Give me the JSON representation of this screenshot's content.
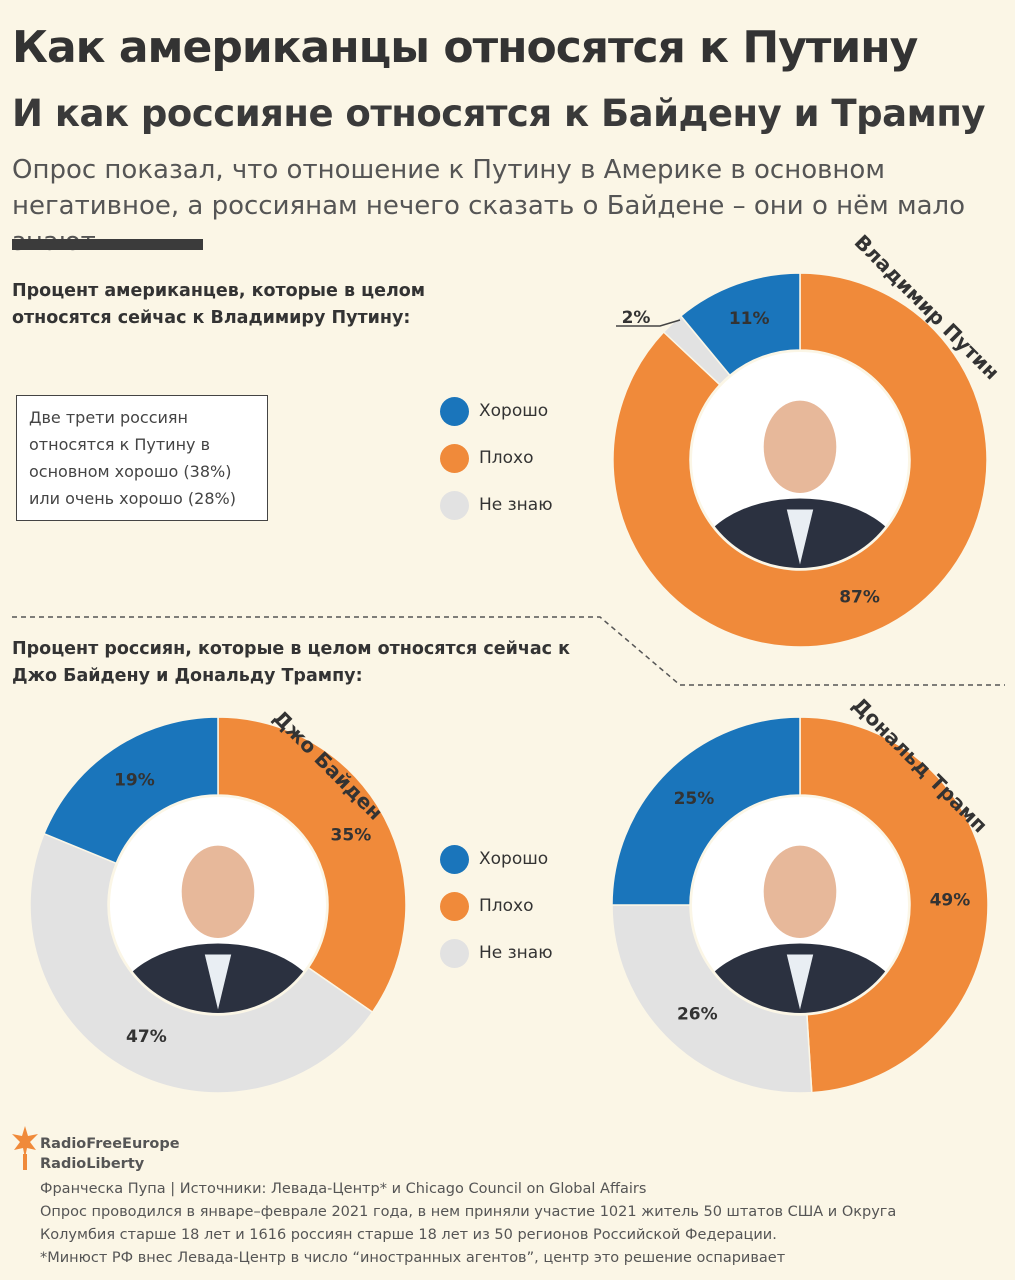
{
  "header": {
    "title": "Как американцы относятся к Путину",
    "subtitle": "И как россияне относятся к Байдену и Трампу",
    "lead": "Опрос показал, что отношение к Путину в Америке в основном негативное, а россиянам нечего сказать о Байдене – они о нём мало знают"
  },
  "section1": {
    "question": "Процент американцев, которые в целом относятся сейчас к Владимиру Путину:",
    "note": "Две трети россиян относятся к Путину в основном хорошо (38%) или очень хорошо (28%)"
  },
  "section2": {
    "question": "Процент россиян, которые в целом относятся сейчас к Джо Байдену и Дональду Трампу:"
  },
  "legend": [
    {
      "label": "Хорошо",
      "color": "#1a75bb"
    },
    {
      "label": "Плохо",
      "color": "#f08a3a"
    },
    {
      "label": "Не знаю",
      "color": "#e2e2e2"
    }
  ],
  "chart_data": [
    {
      "type": "pie",
      "title": "Владимир Путин",
      "categories": [
        "Хорошо",
        "Плохо",
        "Не знаю"
      ],
      "values": [
        11,
        87,
        2
      ],
      "labels": [
        "11%",
        "87%",
        "2%"
      ]
    },
    {
      "type": "pie",
      "title": "Джо Байден",
      "categories": [
        "Хорошо",
        "Плохо",
        "Не знаю"
      ],
      "values": [
        19,
        35,
        47
      ],
      "labels": [
        "19%",
        "35%",
        "47%"
      ]
    },
    {
      "type": "pie",
      "title": "Дональд Трамп",
      "categories": [
        "Хорошо",
        "Плохо",
        "Не знаю"
      ],
      "values": [
        25,
        49,
        26
      ],
      "labels": [
        "25%",
        "49%",
        "26%"
      ]
    }
  ],
  "footer": {
    "logo_line1": "RadioFreeEurope",
    "logo_line2": "RadioLiberty",
    "credits": [
      "Франческа Пупа | Источники: Левада-Центр* и Chicago Council on Global Affairs",
      "Опрос проводился в январе–феврале 2021 года, в нем приняли участие 1021 житель 50 штатов США и Округа Колумбия старше 18 лет и 1616 россиян старше 18 лет из 50 регионов Российской Федерации.",
      "*Минюст РФ внес Левада-Центр в число “иностранных агентов”, центр это решение оспаривает"
    ]
  }
}
